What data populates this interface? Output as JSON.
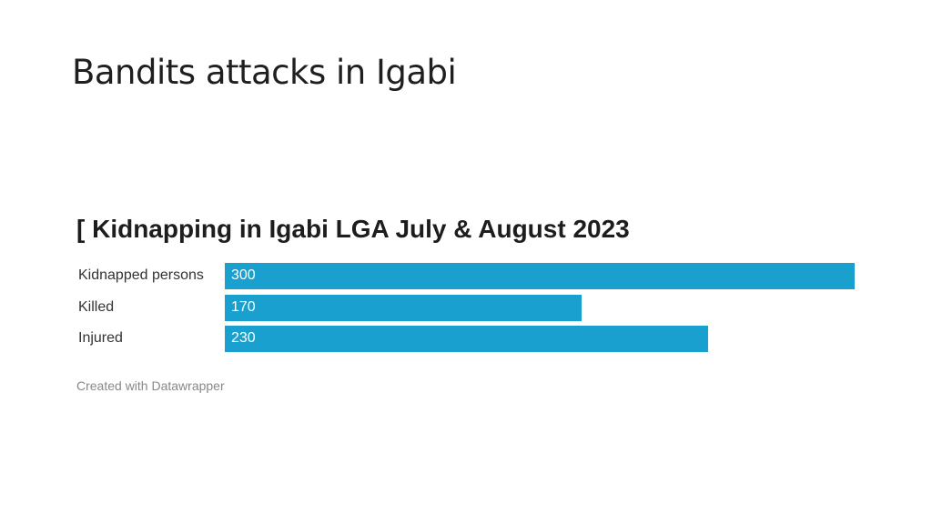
{
  "slide": {
    "title": "Bandits attacks in Igabi"
  },
  "chart_data": {
    "type": "bar",
    "orientation": "horizontal",
    "title": "[ Kidnapping in Igabi LGA July & August 2023",
    "categories": [
      "Kidnapped persons",
      "Killed",
      "Injured"
    ],
    "values": [
      300,
      170,
      230
    ],
    "value_labels": [
      "300",
      "170",
      "230"
    ],
    "xlim": [
      0,
      300
    ],
    "bar_color": "#1aa0cf",
    "grid": false,
    "credit": "Created with Datawrapper"
  }
}
